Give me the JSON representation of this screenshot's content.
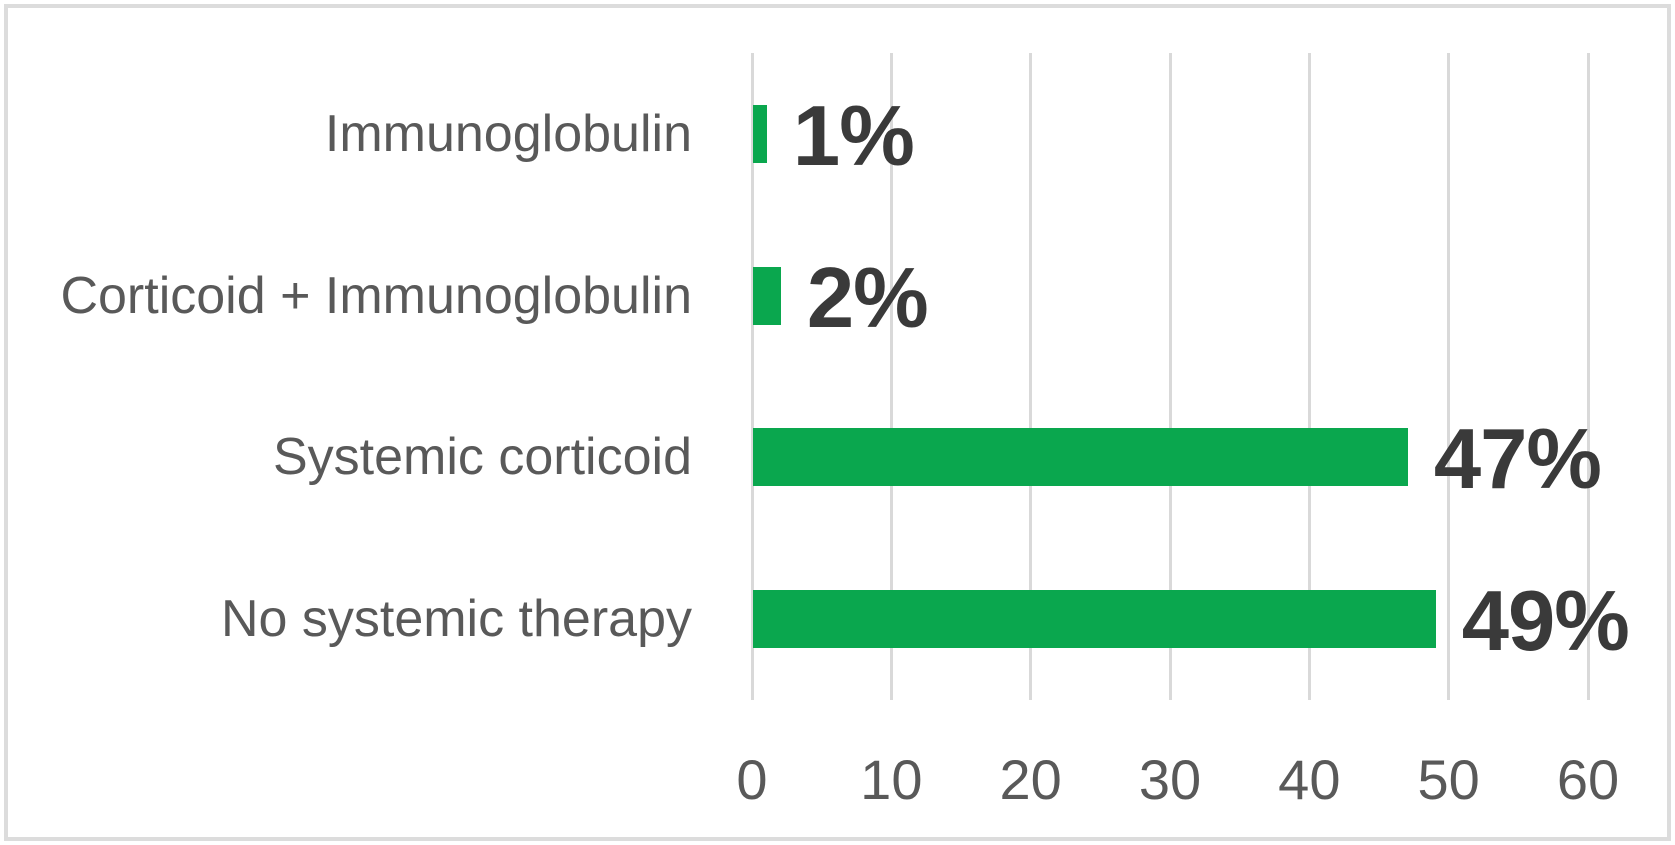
{
  "chart": {
    "background": "#ffffff",
    "border_color": "#dcdcdc"
  },
  "chart_data": {
    "type": "bar",
    "orientation": "horizontal",
    "categories": [
      "Immunoglobulin",
      "Corticoid + Immunoglobulin",
      "Systemic corticoid",
      "No systemic therapy"
    ],
    "values": [
      1,
      2,
      47,
      49
    ],
    "value_labels": [
      "1%",
      "2%",
      "47%",
      "49%"
    ],
    "x_ticks": [
      0,
      10,
      20,
      30,
      40,
      50,
      60
    ],
    "xlim": [
      0,
      60
    ],
    "grid": true,
    "legend": false,
    "bar_color": "#0aa74e",
    "gridline_color": "#d9d9d9",
    "category_label_color": "#595959",
    "tick_label_color": "#595959",
    "value_label_color": "#3a3a3a"
  }
}
